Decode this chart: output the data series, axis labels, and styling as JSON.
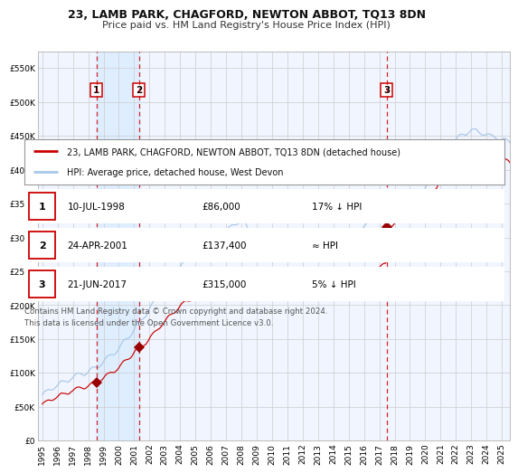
{
  "title": "23, LAMB PARK, CHAGFORD, NEWTON ABBOT, TQ13 8DN",
  "subtitle": "Price paid vs. HM Land Registry's House Price Index (HPI)",
  "xlim": [
    1994.7,
    2025.5
  ],
  "ylim": [
    0,
    575000
  ],
  "yticks": [
    0,
    50000,
    100000,
    150000,
    200000,
    250000,
    300000,
    350000,
    400000,
    450000,
    500000,
    550000
  ],
  "ytick_labels": [
    "£0",
    "£50K",
    "£100K",
    "£150K",
    "£200K",
    "£250K",
    "£300K",
    "£350K",
    "£400K",
    "£450K",
    "£500K",
    "£550K"
  ],
  "xticks": [
    1995,
    1996,
    1997,
    1998,
    1999,
    2000,
    2001,
    2002,
    2003,
    2004,
    2005,
    2006,
    2007,
    2008,
    2009,
    2010,
    2011,
    2012,
    2013,
    2014,
    2015,
    2016,
    2017,
    2018,
    2019,
    2020,
    2021,
    2022,
    2023,
    2024,
    2025
  ],
  "sale_dates": [
    1998.53,
    2001.31,
    2017.47
  ],
  "sale_prices": [
    86000,
    137400,
    315000
  ],
  "sale_labels": [
    "1",
    "2",
    "3"
  ],
  "shaded_region": [
    1998.53,
    2001.31
  ],
  "hpi_color": "#a8c8e8",
  "price_color": "#cc0000",
  "marker_color": "#990000",
  "vline_color": "#cc0000",
  "shaded_color": "#ddeeff",
  "legend_line1": "23, LAMB PARK, CHAGFORD, NEWTON ABBOT, TQ13 8DN (detached house)",
  "legend_line2": "HPI: Average price, detached house, West Devon",
  "table_data": [
    [
      "1",
      "10-JUL-1998",
      "£86,000",
      "17% ↓ HPI"
    ],
    [
      "2",
      "24-APR-2001",
      "£137,400",
      "≈ HPI"
    ],
    [
      "3",
      "21-JUN-2017",
      "£315,000",
      "5% ↓ HPI"
    ]
  ],
  "footer": "Contains HM Land Registry data © Crown copyright and database right 2024.\nThis data is licensed under the Open Government Licence v3.0.",
  "bg_color": "#ffffff",
  "grid_color": "#cccccc",
  "plot_bg_color": "#f0f5ff"
}
